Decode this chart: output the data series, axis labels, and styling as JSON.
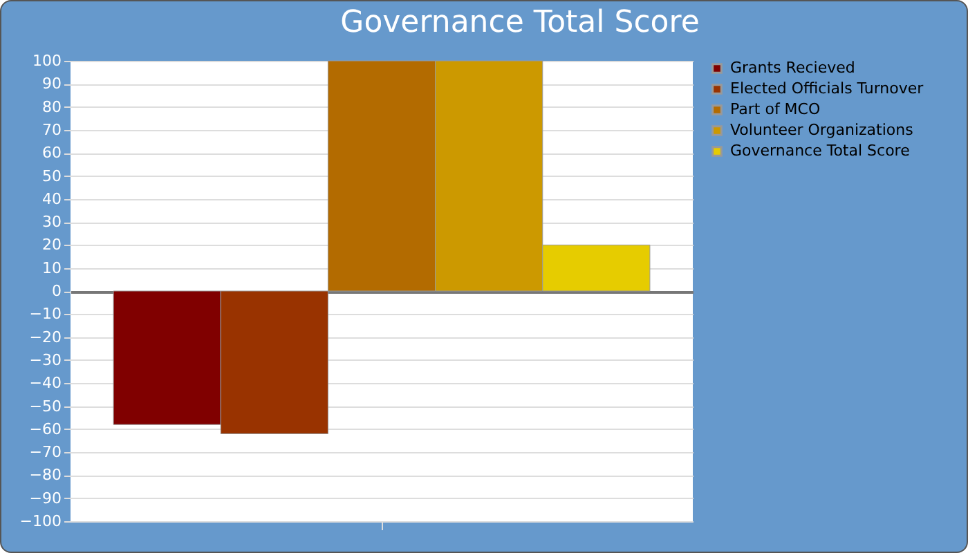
{
  "chart_data": {
    "type": "bar",
    "title": "Governance Total Score",
    "categories": [
      null
    ],
    "series": [
      {
        "name": "Grants Recieved",
        "color": "#800000",
        "values": [
          -58
        ]
      },
      {
        "name": "Elected Officials Turnover",
        "color": "#993300",
        "values": [
          -62
        ]
      },
      {
        "name": "Part of MCO",
        "color": "#b36b00",
        "values": [
          100
        ]
      },
      {
        "name": "Volunteer Organizations",
        "color": "#cc9900",
        "values": [
          100
        ]
      },
      {
        "name": "Governance Total Score",
        "color": "#e6cc00",
        "values": [
          20
        ]
      }
    ],
    "ylim": [
      -100,
      100
    ],
    "yticks": [
      -100,
      -90,
      -80,
      -70,
      -60,
      -50,
      -40,
      -30,
      -20,
      -10,
      0,
      10,
      20,
      30,
      40,
      50,
      60,
      70,
      80,
      90,
      100
    ],
    "grid": "y",
    "legend": "top right"
  }
}
